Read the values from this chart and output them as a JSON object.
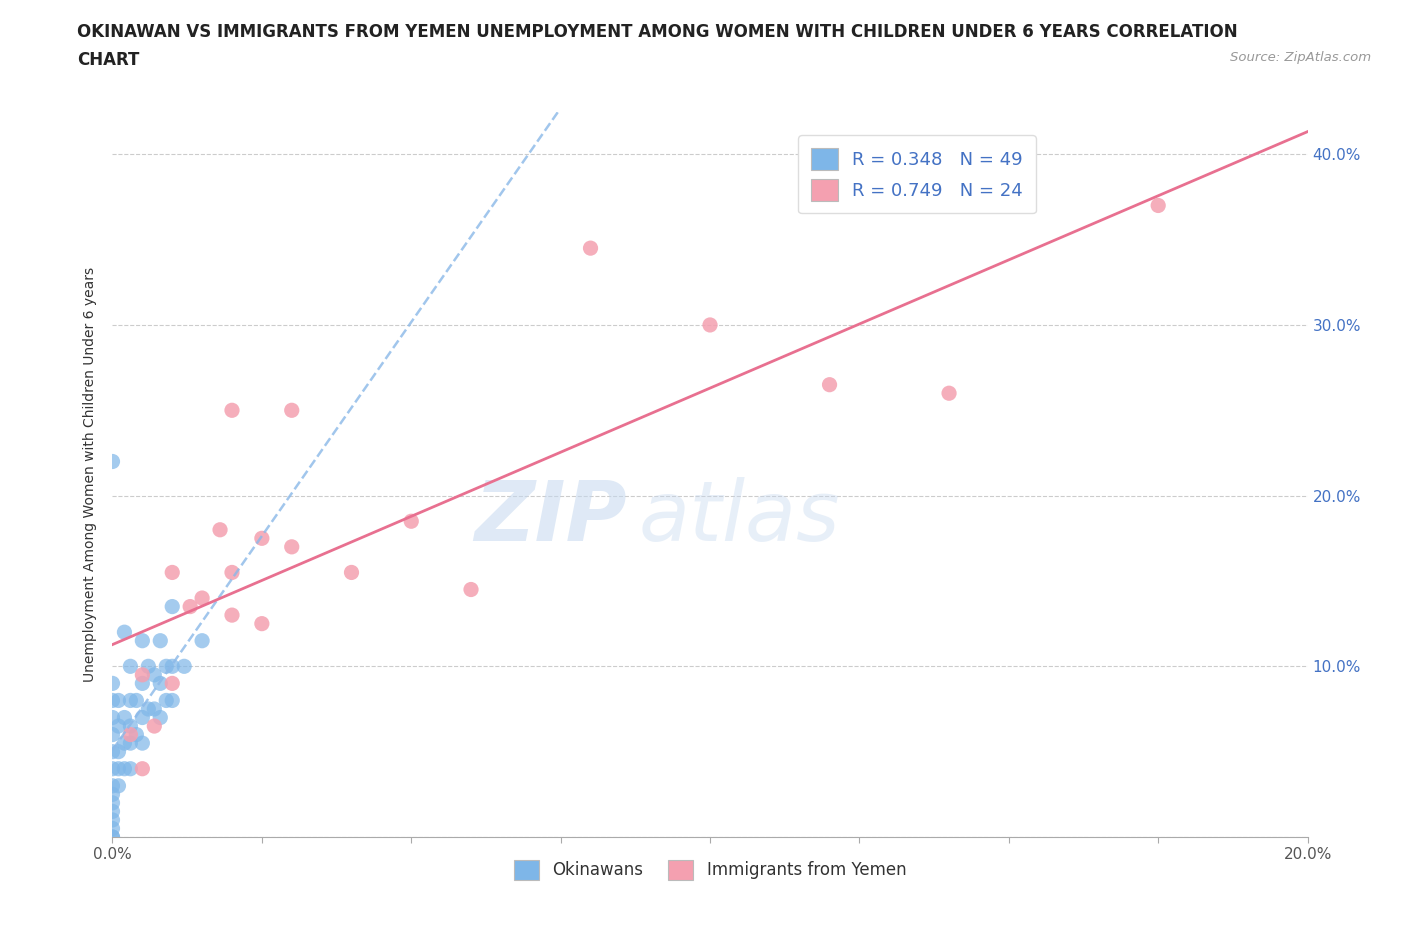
{
  "title_line1": "OKINAWAN VS IMMIGRANTS FROM YEMEN UNEMPLOYMENT AMONG WOMEN WITH CHILDREN UNDER 6 YEARS CORRELATION",
  "title_line2": "CHART",
  "source": "Source: ZipAtlas.com",
  "ylabel": "Unemployment Among Women with Children Under 6 years",
  "xlim": [
    0.0,
    0.2
  ],
  "ylim": [
    0.0,
    0.425
  ],
  "xticks": [
    0.0,
    0.025,
    0.05,
    0.075,
    0.1,
    0.125,
    0.15,
    0.175,
    0.2
  ],
  "yticks": [
    0.0,
    0.1,
    0.2,
    0.3,
    0.4
  ],
  "xtick_labels_show": {
    "0.0": "0.0%",
    "0.20": "20.0%"
  },
  "ytick_labels": [
    "",
    "10.0%",
    "20.0%",
    "30.0%",
    "40.0%"
  ],
  "legend_r1": "R = 0.348   N = 49",
  "legend_r2": "R = 0.749   N = 24",
  "blue_color": "#7EB6E8",
  "pink_color": "#F4A0B0",
  "blue_line_color": "#8AB8E8",
  "pink_line_color": "#E87090",
  "background_color": "#FFFFFF",
  "watermark_zip": "ZIP",
  "watermark_atlas": "atlas",
  "okinawan_x": [
    0.0,
    0.0,
    0.0,
    0.0,
    0.0,
    0.0,
    0.0,
    0.0,
    0.0,
    0.0,
    0.0,
    0.0,
    0.0,
    0.0,
    0.0,
    0.001,
    0.001,
    0.001,
    0.001,
    0.001,
    0.002,
    0.002,
    0.002,
    0.002,
    0.003,
    0.003,
    0.003,
    0.003,
    0.003,
    0.004,
    0.004,
    0.005,
    0.005,
    0.005,
    0.005,
    0.006,
    0.006,
    0.007,
    0.007,
    0.008,
    0.008,
    0.008,
    0.009,
    0.009,
    0.01,
    0.01,
    0.01,
    0.012,
    0.015
  ],
  "okinawan_y": [
    0.0,
    0.0,
    0.005,
    0.01,
    0.015,
    0.02,
    0.025,
    0.03,
    0.04,
    0.05,
    0.06,
    0.07,
    0.08,
    0.09,
    0.22,
    0.03,
    0.04,
    0.05,
    0.065,
    0.08,
    0.04,
    0.055,
    0.07,
    0.12,
    0.04,
    0.055,
    0.065,
    0.08,
    0.1,
    0.06,
    0.08,
    0.055,
    0.07,
    0.09,
    0.115,
    0.075,
    0.1,
    0.075,
    0.095,
    0.07,
    0.09,
    0.115,
    0.08,
    0.1,
    0.08,
    0.1,
    0.135,
    0.1,
    0.115
  ],
  "yemen_x": [
    0.003,
    0.005,
    0.005,
    0.007,
    0.01,
    0.01,
    0.013,
    0.015,
    0.018,
    0.02,
    0.02,
    0.02,
    0.025,
    0.025,
    0.03,
    0.03,
    0.04,
    0.05,
    0.06,
    0.08,
    0.1,
    0.12,
    0.14,
    0.175
  ],
  "yemen_y": [
    0.06,
    0.04,
    0.095,
    0.065,
    0.09,
    0.155,
    0.135,
    0.14,
    0.18,
    0.13,
    0.155,
    0.25,
    0.125,
    0.175,
    0.17,
    0.25,
    0.155,
    0.185,
    0.145,
    0.345,
    0.3,
    0.265,
    0.26,
    0.37
  ]
}
